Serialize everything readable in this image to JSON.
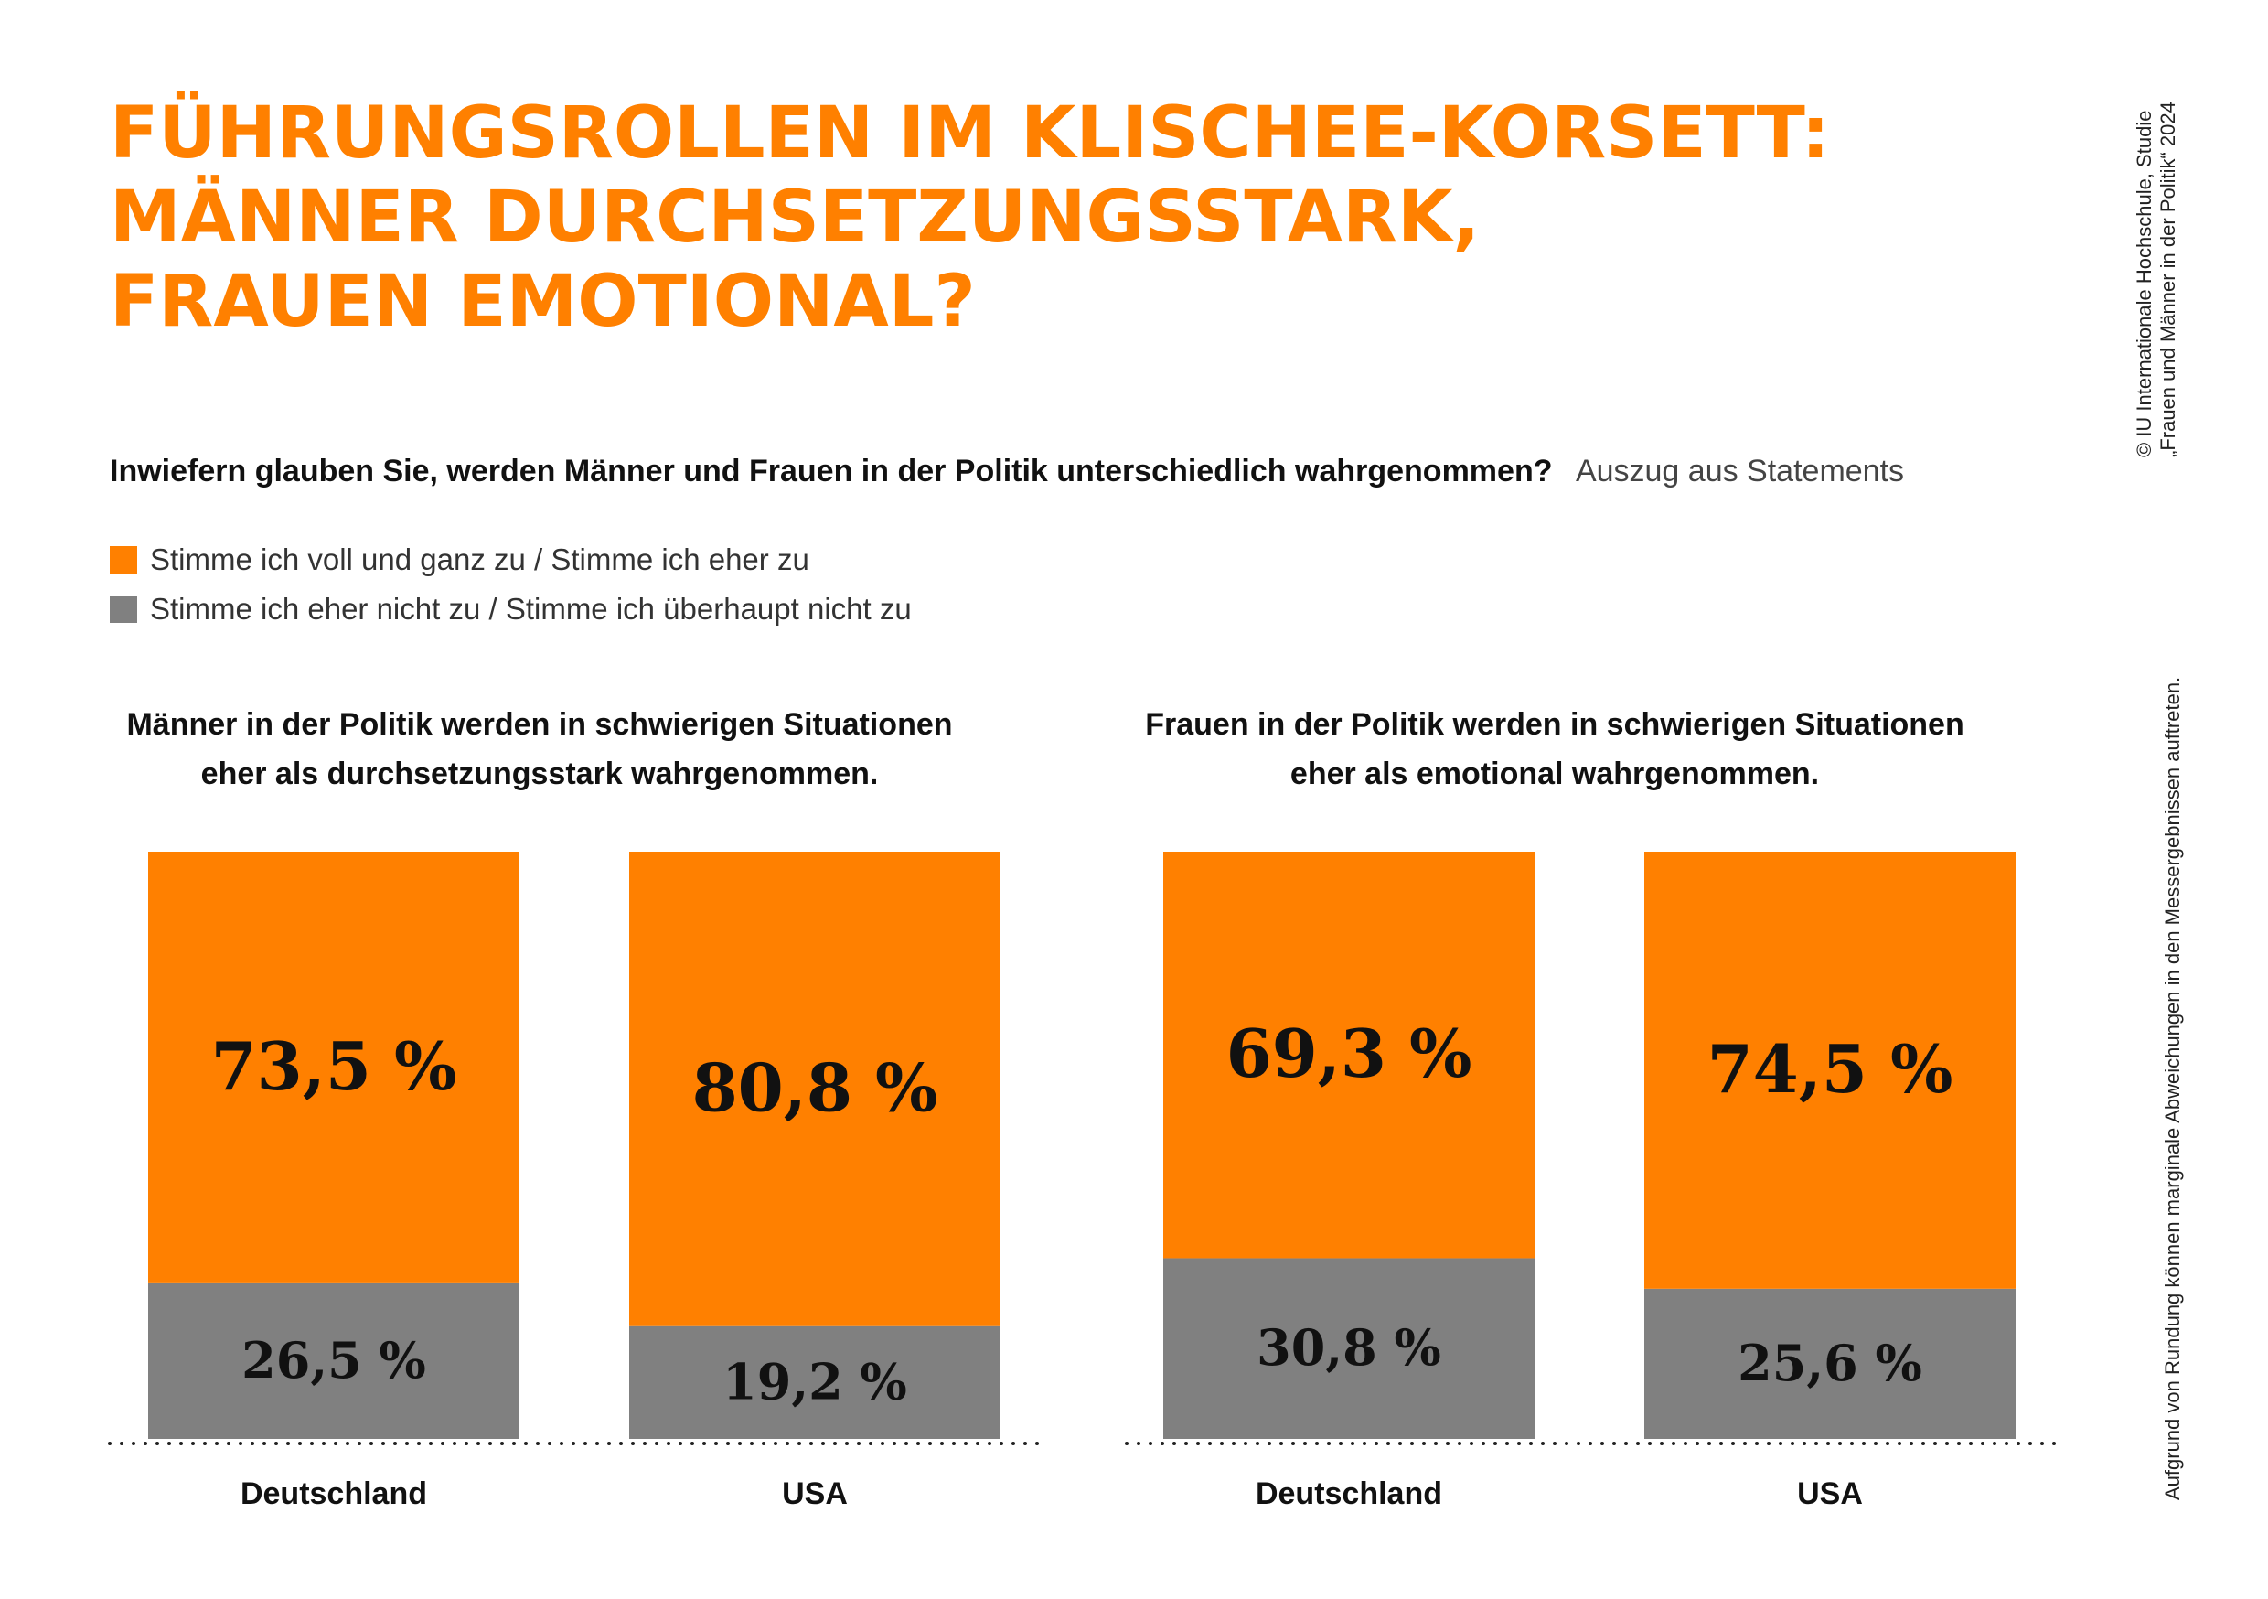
{
  "title": {
    "lines": [
      "FÜHRUNGSROLLEN IM KLISCHEE-KORSETT:",
      "MÄNNER DURCHSETZUNGSSTARK,",
      "FRAUEN EMOTIONAL?"
    ]
  },
  "question": {
    "text": "Inwiefern glauben Sie, werden Männer und Frauen in der Politik unterschiedlich wahrgenommen?",
    "subtext": "Auszug aus Statements"
  },
  "legend": {
    "items": [
      {
        "label": "Stimme ich voll und ganz zu / Stimme ich eher zu",
        "color": "#ff8000"
      },
      {
        "label": "Stimme ich eher nicht zu / Stimme ich überhaupt nicht zu",
        "color": "#808080"
      }
    ]
  },
  "credit": {
    "line1": "© IU Internationale Hochschule, Studie",
    "line2": "„Frauen und Männer in der Politik“ 2024"
  },
  "note": "Aufgrund von Rundung können marginale Abweichungen in den Messergebnissen auftreten.",
  "colors": {
    "agree": "#ff8000",
    "disagree": "#808080",
    "title": "#ff8000"
  },
  "chart_data": [
    {
      "type": "bar",
      "stacked": true,
      "normalized": true,
      "title": "Männer in der Politik werden in schwierigen Situationen eher als durchsetzungsstark wahrgenommen.",
      "title_lines": [
        "Männer in der Politik werden in schwierigen Situationen",
        "eher als durchsetzungsstark wahrgenommen."
      ],
      "categories": [
        "Deutschland",
        "USA"
      ],
      "series": [
        {
          "name": "Stimme ich voll und ganz zu / Stimme ich eher zu",
          "values": [
            73.5,
            80.8
          ],
          "labels": [
            "73,5 %",
            "80,8 %"
          ],
          "color": "#ff8000"
        },
        {
          "name": "Stimme ich eher nicht zu / Stimme ich überhaupt nicht zu",
          "values": [
            26.5,
            19.2
          ],
          "labels": [
            "26,5 %",
            "19,2 %"
          ],
          "color": "#808080"
        }
      ],
      "ylim": [
        0,
        100
      ]
    },
    {
      "type": "bar",
      "stacked": true,
      "normalized": true,
      "title": "Frauen in der Politik werden in schwierigen Situationen eher als emotional wahrgenommen.",
      "title_lines": [
        "Frauen in der Politik werden in schwierigen Situationen",
        "eher als emotional wahrgenommen."
      ],
      "categories": [
        "Deutschland",
        "USA"
      ],
      "series": [
        {
          "name": "Stimme ich voll und ganz zu / Stimme ich eher zu",
          "values": [
            69.3,
            74.5
          ],
          "labels": [
            "69,3 %",
            "74,5 %"
          ],
          "color": "#ff8000"
        },
        {
          "name": "Stimme ich eher nicht zu / Stimme ich überhaupt nicht zu",
          "values": [
            30.8,
            25.6
          ],
          "labels": [
            "30,8 %",
            "25,6 %"
          ],
          "color": "#808080"
        }
      ],
      "ylim": [
        0,
        100
      ]
    }
  ]
}
